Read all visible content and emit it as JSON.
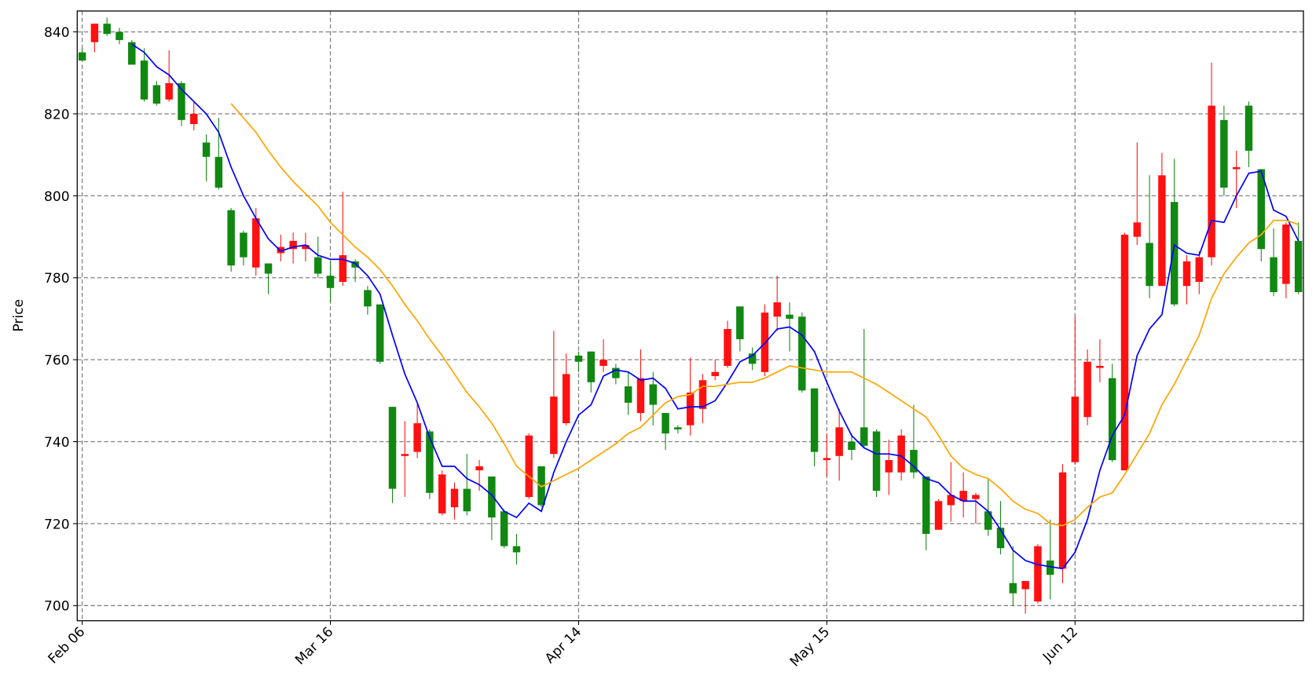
{
  "chart_data": {
    "type": "candlestick",
    "ylabel": "Price",
    "categories": [
      "Feb 06",
      null,
      null,
      null,
      null,
      null,
      null,
      null,
      null,
      null,
      null,
      null,
      null,
      null,
      null,
      null,
      null,
      null,
      null,
      null,
      "Mar 16",
      null,
      null,
      null,
      null,
      null,
      null,
      null,
      null,
      null,
      null,
      null,
      null,
      null,
      null,
      null,
      null,
      null,
      null,
      null,
      "Apr 14",
      null,
      null,
      null,
      null,
      null,
      null,
      null,
      null,
      null,
      null,
      null,
      null,
      null,
      null,
      null,
      null,
      null,
      null,
      null,
      "May 15",
      null,
      null,
      null,
      null,
      null,
      null,
      null,
      null,
      null,
      null,
      null,
      null,
      null,
      null,
      null,
      null,
      null,
      null,
      null,
      "Jun 12",
      null,
      null,
      null,
      null,
      null,
      null,
      null,
      null,
      null,
      null,
      null,
      null,
      null,
      null,
      null,
      null,
      null,
      null
    ],
    "open": [
      835,
      837.5,
      842,
      840,
      837.5,
      833,
      827,
      823.5,
      827.5,
      817.5,
      813,
      809.5,
      796.5,
      791,
      782.5,
      783.5,
      786,
      787,
      787,
      785,
      780.5,
      779,
      784,
      777,
      773.5,
      748.5,
      736.5,
      737.5,
      742.5,
      722.5,
      724,
      728.5,
      733,
      731.5,
      723,
      714.5,
      726.5,
      734,
      737,
      744.5,
      761,
      762,
      758.5,
      758,
      753.5,
      747,
      754,
      747,
      743.5,
      744,
      748,
      756,
      758.5,
      773,
      761.5,
      757,
      770.5,
      771,
      770.5,
      753,
      735.5,
      736.5,
      740,
      743.5,
      742.5,
      732.5,
      732.5,
      738,
      731.5,
      718.5,
      724.5,
      725.5,
      726,
      723,
      719,
      705.5,
      704,
      701,
      711,
      709,
      735,
      746,
      758,
      755.5,
      733,
      790,
      788.5,
      778,
      798.5,
      778,
      779,
      785,
      818.5,
      806.5,
      822,
      806.5,
      785,
      778.5,
      789
    ],
    "high": [
      836,
      842,
      843.5,
      841,
      838,
      836,
      828,
      835.5,
      828,
      823,
      815,
      819,
      797,
      791.5,
      797,
      783.5,
      790.5,
      791,
      791,
      790,
      784,
      801,
      784.5,
      778,
      773.5,
      748.5,
      745,
      749.5,
      743,
      733,
      730,
      737,
      735.5,
      731.5,
      723.5,
      717.5,
      742,
      734,
      767,
      761.5,
      762,
      762,
      765,
      759,
      757,
      762.5,
      757,
      747,
      744,
      760.5,
      756.5,
      760,
      769.5,
      773,
      763,
      773.5,
      780.5,
      774,
      771.5,
      753,
      742,
      748,
      742,
      767.5,
      743,
      740.5,
      743,
      749,
      731.5,
      726,
      735,
      732.5,
      727.5,
      731,
      725.5,
      714.5,
      706,
      715,
      721,
      734.5,
      770.5,
      762.5,
      765,
      759,
      791,
      813,
      805,
      810.5,
      809,
      785.5,
      786.5,
      832.5,
      822,
      811,
      823,
      806.5,
      792,
      793.5,
      793.5
    ],
    "low": [
      833,
      835,
      839,
      837,
      832,
      823,
      822,
      823,
      817,
      816,
      803.5,
      801.5,
      781.5,
      783,
      780.5,
      776,
      784,
      783.5,
      784,
      780,
      774,
      778,
      779,
      771,
      759,
      725,
      726.5,
      736,
      726,
      722,
      721,
      722,
      728,
      716,
      714,
      710,
      726,
      724,
      736,
      744,
      757,
      752,
      757,
      754,
      746.5,
      745,
      744,
      738,
      742,
      741.5,
      744.5,
      755,
      758,
      762,
      757.5,
      756,
      767,
      762,
      752,
      734,
      731.5,
      730.5,
      735.5,
      738.5,
      726.5,
      727,
      730.5,
      731,
      713.5,
      718.5,
      720.5,
      721.5,
      720,
      717,
      712.5,
      700,
      698,
      700.5,
      701.5,
      705.5,
      734.5,
      744,
      754.5,
      735,
      733,
      788,
      775,
      778,
      773,
      773.5,
      776,
      783,
      800,
      797,
      807,
      784,
      775.5,
      775,
      776
    ],
    "close": [
      833,
      842,
      839.5,
      838,
      832,
      823.5,
      822.5,
      827.5,
      818.5,
      820,
      809.5,
      802,
      783,
      785,
      794.5,
      781,
      787.5,
      789,
      788,
      781,
      777.5,
      785.5,
      782.5,
      773,
      759.5,
      728.5,
      737,
      744.5,
      727.5,
      732,
      728.5,
      723,
      734,
      721.5,
      714.5,
      713,
      741.5,
      724.5,
      751,
      756.5,
      759.5,
      754.5,
      760,
      755.5,
      749.5,
      755.5,
      749,
      742,
      743,
      752,
      755,
      757,
      767.5,
      765,
      759,
      771.5,
      774,
      770,
      752.5,
      737.5,
      736,
      743.5,
      738,
      739,
      728,
      735.5,
      741.5,
      732.5,
      717.5,
      725.5,
      727,
      728,
      727,
      718.5,
      714,
      703,
      706,
      714.5,
      707.5,
      732.5,
      751,
      759.5,
      758.5,
      735.5,
      790.5,
      793.5,
      778,
      805,
      773.5,
      784,
      785,
      822,
      802,
      807,
      811,
      787,
      776.5,
      793,
      776.5
    ],
    "up_color": "#ff1111",
    "down_color": "#118811",
    "lines": [
      {
        "color": "#0000ff",
        "values": [
          null,
          null,
          null,
          null,
          837,
          835,
          831.5,
          829.5,
          826,
          823,
          820,
          815.5,
          807,
          800,
          794.5,
          789.5,
          786.5,
          787.5,
          788,
          785.5,
          784.5,
          784.5,
          783.5,
          780.5,
          776,
          766,
          756.5,
          749.5,
          741,
          734,
          734,
          731,
          729.5,
          727,
          723,
          721.5,
          725,
          723,
          732.5,
          740,
          746.5,
          749,
          756,
          757.5,
          757,
          755,
          755.5,
          753,
          748,
          748.5,
          748.5,
          750,
          754.5,
          759.5,
          761,
          764,
          767.5,
          768,
          766,
          762,
          754.5,
          747.5,
          741.5,
          738.5,
          737,
          737,
          736.5,
          734,
          731,
          730,
          727,
          725.5,
          725.5,
          723,
          718.5,
          713.5,
          711,
          710,
          709.5,
          709,
          713,
          721,
          733,
          741.5,
          746.5,
          761,
          767.5,
          771,
          788,
          786,
          785.5,
          794,
          793.5,
          800,
          805.5,
          806,
          796.5,
          795,
          789
        ]
      },
      {
        "color": "#ffa500",
        "values": [
          null,
          null,
          null,
          null,
          null,
          null,
          null,
          null,
          null,
          null,
          null,
          null,
          822.5,
          819,
          815.5,
          811,
          807,
          803.5,
          800.5,
          797.5,
          793.5,
          790.5,
          787.5,
          785,
          782,
          778,
          773.5,
          769.5,
          765,
          761,
          756.5,
          752,
          748.5,
          744.5,
          739.5,
          734,
          731.5,
          729,
          730.5,
          732,
          733.5,
          735.5,
          737.5,
          739.5,
          742,
          743.5,
          746.5,
          749.5,
          751,
          751.5,
          753.5,
          753.5,
          754,
          754.5,
          754.5,
          755.5,
          757,
          758.5,
          758,
          757.5,
          757,
          757,
          757,
          755.5,
          754,
          752,
          750,
          748,
          746,
          741.5,
          736.5,
          733.5,
          732,
          731,
          728.5,
          725.5,
          723.5,
          722.5,
          720,
          719.5,
          721,
          724,
          726.5,
          727.5,
          732,
          737,
          742,
          749,
          754,
          760,
          766,
          775,
          781,
          785,
          788.5,
          790.5,
          794,
          794,
          793
        ]
      }
    ],
    "xlim": [
      -0.4,
      98.4
    ],
    "ylim": [
      696.3,
      845.1
    ],
    "yticks": [
      700,
      720,
      740,
      760,
      780,
      800,
      820,
      840
    ],
    "grid": true
  }
}
